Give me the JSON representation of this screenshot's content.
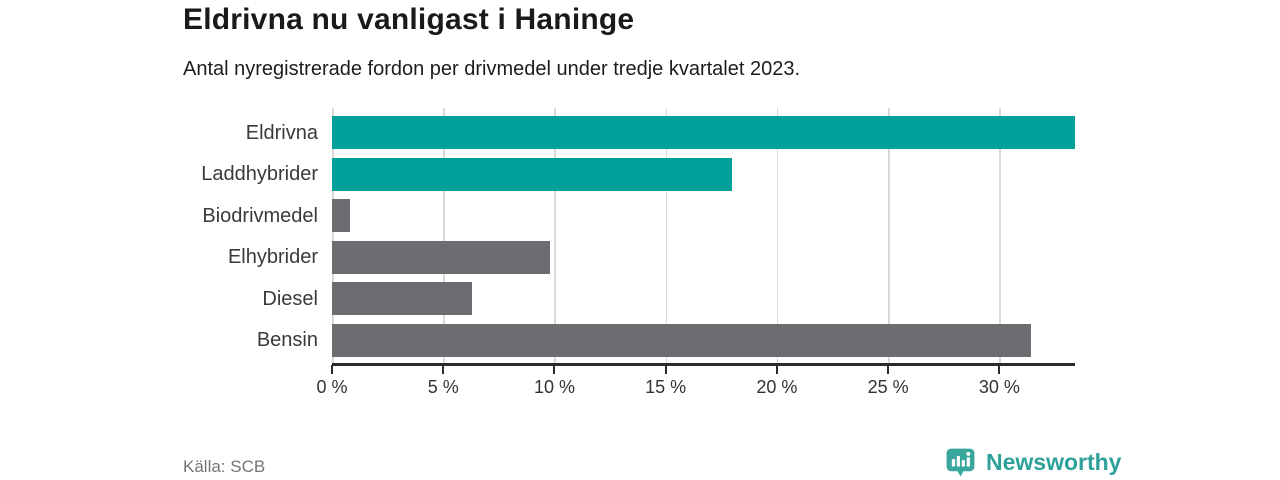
{
  "header": {
    "title": "Eldrivna nu vanligast i Haninge",
    "subtitle": "Antal nyregistrerade fordon per drivmedel under tredje kvartalet 2023."
  },
  "chart_data": {
    "type": "bar",
    "orientation": "horizontal",
    "title": "Eldrivna nu vanligast i Haninge",
    "subtitle": "Antal nyregistrerade fordon per drivmedel under tredje kvartalet 2023.",
    "categories": [
      "Eldrivna",
      "Laddhybrider",
      "Biodrivmedel",
      "Elhybrider",
      "Diesel",
      "Bensin"
    ],
    "values": [
      33.4,
      18.0,
      0.8,
      9.8,
      6.3,
      31.4
    ],
    "unit": "%",
    "xlim": [
      0,
      33.4
    ],
    "x_ticks": [
      0,
      5,
      10,
      15,
      20,
      25,
      30
    ],
    "tick_suffix": " %",
    "grid": true,
    "legend": false,
    "bar_colors": [
      "#00a09a",
      "#00a09a",
      "#6d6d71",
      "#6d6d71",
      "#6d6d71",
      "#6d6d71"
    ]
  },
  "footer": {
    "source": "Källa: SCB",
    "brand": "Newsworthy"
  },
  "colors": {
    "accent_teal": "#00a09a",
    "bar_gray": "#6d6d71",
    "gridline": "#d9d9d9",
    "axis": "#2b2b2b",
    "brand_teal": "#3aa79d"
  }
}
